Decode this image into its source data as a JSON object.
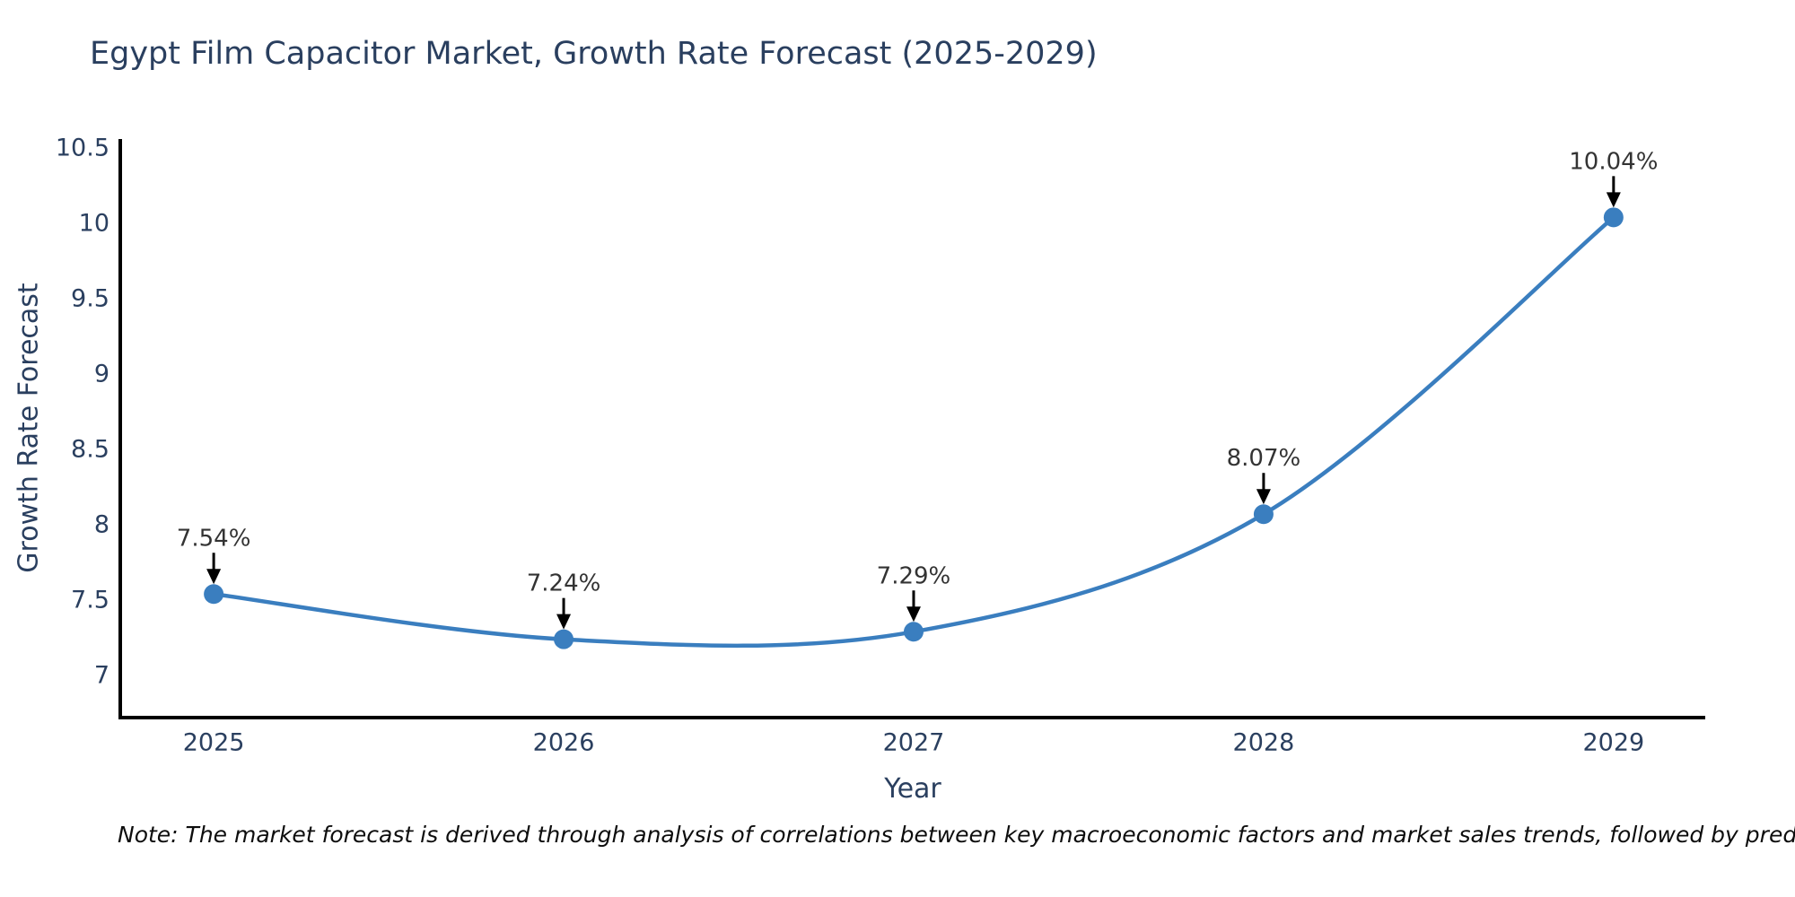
{
  "header": {
    "title": "Egypt Film Capacitor Market, Growth Rate Forecast (2025-2029)"
  },
  "chart_data": {
    "type": "line",
    "title": "Egypt Film Capacitor Market, Growth Rate Forecast (2025-2029)",
    "xlabel": "Year",
    "ylabel": "Growth Rate Forecast",
    "x": [
      2025,
      2026,
      2027,
      2028,
      2029
    ],
    "values": [
      7.54,
      7.24,
      7.29,
      8.07,
      10.04
    ],
    "point_labels": [
      "7.54%",
      "7.24%",
      "7.29%",
      "8.07%",
      "10.04%"
    ],
    "x_tick_labels": [
      "2025",
      "2026",
      "2027",
      "2028",
      "2029"
    ],
    "x_tick_values": [
      2025,
      2026,
      2027,
      2028,
      2029
    ],
    "y_tick_labels": [
      "7",
      "7.5",
      "8",
      "8.5",
      "9",
      "9.5",
      "10",
      "10.5"
    ],
    "y_tick_values": [
      7,
      7.5,
      8,
      8.5,
      9,
      9.5,
      10,
      10.5
    ],
    "xlim": [
      2024.733,
      2029.262
    ],
    "ylim": [
      6.72,
      10.56
    ],
    "line_shape": "spline",
    "grid": false,
    "legend_position": "none",
    "colors": {
      "line": "#3a7ebf",
      "marker": "#3a7ebf",
      "axis": "#000000",
      "tick_text": "#2a3f5f",
      "annotation_text": "#333333",
      "annotation_arrow": "#000000",
      "background": "#ffffff"
    }
  },
  "footnote": {
    "text": "Note: The market forecast is derived through analysis of correlations between key macroeconomic factors and market sales trends, followed by predictive modeling to project future sal"
  }
}
